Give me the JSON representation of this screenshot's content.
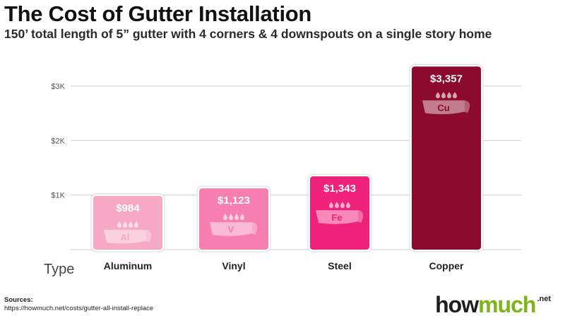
{
  "chart_data": {
    "type": "bar",
    "title": "The Cost of Gutter Installation",
    "subtitle": "150’ total length of 5” gutter with 4 corners & 4 downspouts on a single story home",
    "xlabel": "Type",
    "ylabel": "",
    "categories": [
      "Aluminum",
      "Vinyl",
      "Steel",
      "Copper"
    ],
    "values": [
      984,
      1123,
      1343,
      3357
    ],
    "value_labels": [
      "$984",
      "$1,123",
      "$1,343",
      "$3,357"
    ],
    "element_symbols": [
      "Al",
      "V",
      "Fe",
      "Cu"
    ],
    "colors": [
      "#f7a8c4",
      "#f77fb0",
      "#f0217a",
      "#8c0a2e"
    ],
    "ylim": [
      0,
      3300
    ],
    "yticks": [
      1000,
      2000,
      3000
    ],
    "ytick_labels": [
      "$1K",
      "$2K",
      "$3K"
    ],
    "grid": true,
    "legend": "none"
  },
  "sources": {
    "label": "Sources:",
    "url": "https://howmuch.net/costs/gutter-all-install-replace"
  },
  "logo": {
    "how": "how",
    "much": "much",
    "tld": ".net"
  }
}
